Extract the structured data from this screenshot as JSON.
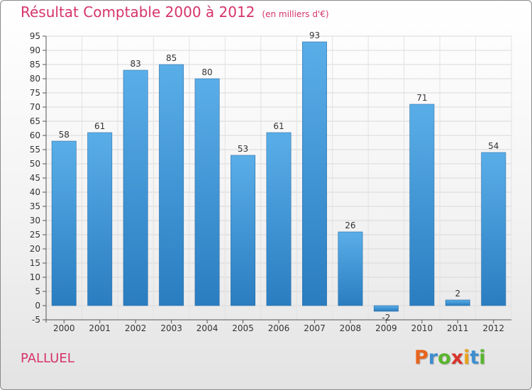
{
  "chart_data": {
    "type": "bar",
    "title": "Résultat Comptable 2000 à 2012",
    "subtitle": "(en milliers d'€)",
    "categories": [
      "2000",
      "2001",
      "2002",
      "2003",
      "2004",
      "2005",
      "2006",
      "2007",
      "2008",
      "2009",
      "2010",
      "2011",
      "2012"
    ],
    "values": [
      58,
      61,
      83,
      85,
      80,
      53,
      61,
      93,
      26,
      -2,
      71,
      2,
      54
    ],
    "ylim": [
      -5,
      95
    ],
    "ytick_step": 5,
    "grid": true,
    "bar_color_top": "#5aaee8",
    "bar_color_bottom": "#2a7dc0"
  },
  "footer": {
    "place": "PALLUEL",
    "logo_letters": [
      "P",
      "r",
      "o",
      "x",
      "i",
      "t",
      "i"
    ],
    "logo_colors": [
      "#e8641c",
      "#3f8fd0",
      "#5ab52e",
      "#d9342b",
      "#e8a21c",
      "#3f8fd0",
      "#5ab52e"
    ]
  }
}
